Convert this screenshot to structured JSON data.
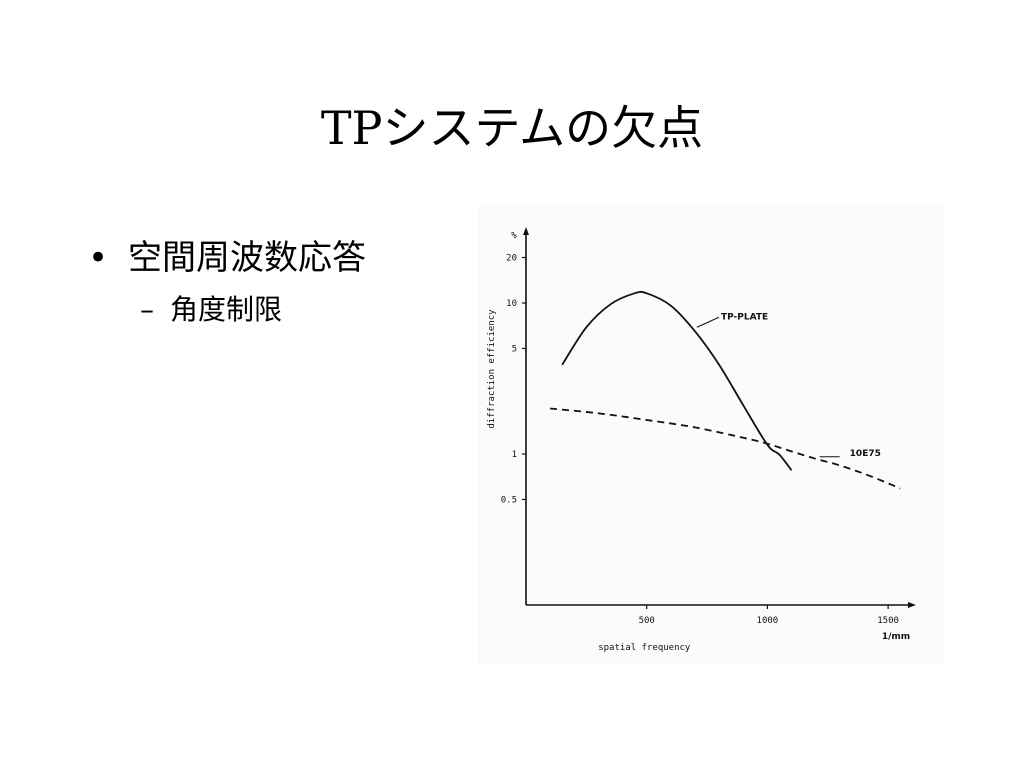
{
  "slide": {
    "title": "TPシステムの欠点",
    "bullet": "空間周波数応答",
    "bullet_marker": "•",
    "sub_bullet": "角度制限",
    "sub_marker": "–"
  },
  "chart_data": {
    "type": "line",
    "title": "",
    "xlabel": "spatial frequency",
    "ylabel": "diffraction efficiency",
    "x_unit": "1/mm",
    "y_unit": "%",
    "xlim": [
      0,
      1700
    ],
    "ylim": [
      0.1,
      30
    ],
    "y_scale": "log",
    "x_ticks": [
      500,
      1000,
      1500
    ],
    "y_ticks": [
      0.5,
      1,
      5,
      10,
      20
    ],
    "grid": false,
    "series": [
      {
        "name": "TP-PLATE",
        "style": "solid",
        "x": [
          150,
          250,
          350,
          450,
          500,
          600,
          700,
          800,
          900,
          1000,
          1050,
          1100
        ],
        "y": [
          3.9,
          6.9,
          9.8,
          11.6,
          11.6,
          9.6,
          6.5,
          3.9,
          2.1,
          1.15,
          0.99,
          0.78
        ]
      },
      {
        "name": "10E75",
        "style": "dashed",
        "x": [
          100,
          300,
          500,
          700,
          900,
          1000,
          1100,
          1200,
          1300,
          1400,
          1500,
          1550
        ],
        "y": [
          2.0,
          1.86,
          1.68,
          1.5,
          1.28,
          1.17,
          1.04,
          0.93,
          0.84,
          0.74,
          0.64,
          0.59
        ]
      }
    ]
  }
}
